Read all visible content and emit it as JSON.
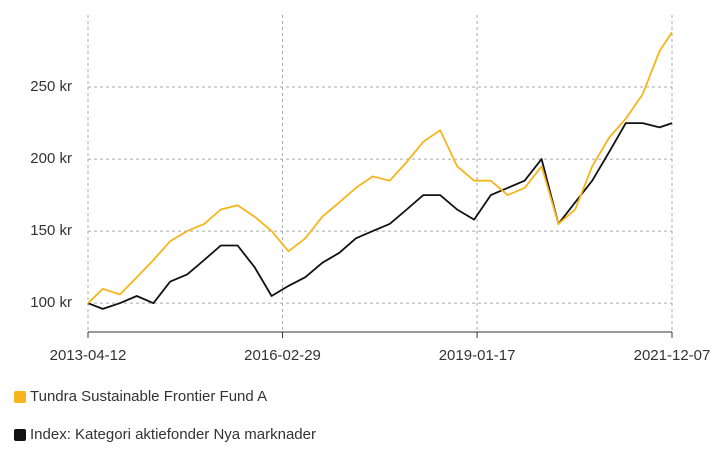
{
  "chart_data": {
    "type": "line",
    "x": [
      "2013-04-12",
      "2013-07-01",
      "2013-10-01",
      "2014-01-01",
      "2014-04-01",
      "2014-07-01",
      "2014-10-01",
      "2015-01-01",
      "2015-04-01",
      "2015-07-01",
      "2015-10-01",
      "2016-01-01",
      "2016-04-01",
      "2016-07-01",
      "2016-10-01",
      "2017-01-01",
      "2017-04-01",
      "2017-07-01",
      "2017-10-01",
      "2018-01-01",
      "2018-04-01",
      "2018-07-01",
      "2018-10-01",
      "2019-01-01",
      "2019-04-01",
      "2019-07-01",
      "2019-10-01",
      "2020-01-01",
      "2020-04-01",
      "2020-07-01",
      "2020-10-01",
      "2021-01-01",
      "2021-04-01",
      "2021-07-01",
      "2021-10-01",
      "2021-12-07"
    ],
    "series": [
      {
        "name": "Tundra Sustainable Frontier Fund A",
        "color": "#f7b51c",
        "values": [
          100,
          110,
          106,
          118,
          130,
          143,
          150,
          155,
          165,
          168,
          160,
          150,
          136,
          145,
          160,
          170,
          180,
          188,
          185,
          198,
          212,
          220,
          195,
          185,
          185,
          175,
          180,
          195,
          155,
          165,
          195,
          215,
          228,
          245,
          275,
          288
        ]
      },
      {
        "name": "Index: Kategori aktiefonder Nya marknader",
        "color": "#111111",
        "values": [
          100,
          96,
          100,
          105,
          100,
          115,
          120,
          130,
          140,
          140,
          125,
          105,
          112,
          118,
          128,
          135,
          145,
          150,
          155,
          165,
          175,
          175,
          165,
          158,
          175,
          180,
          185,
          200,
          155,
          170,
          185,
          205,
          225,
          225,
          222,
          225
        ]
      }
    ],
    "xlim": [
      "2013-04-12",
      "2021-12-07"
    ],
    "xticks": [
      "2013-04-12",
      "2016-02-29",
      "2019-01-17",
      "2021-12-07"
    ],
    "ylim": [
      80,
      300
    ],
    "yticks": [
      {
        "value": 100,
        "label": "100 kr"
      },
      {
        "value": 150,
        "label": "150 kr"
      },
      {
        "value": 200,
        "label": "200 kr"
      },
      {
        "value": 250,
        "label": "250 kr"
      }
    ],
    "grid": true
  }
}
